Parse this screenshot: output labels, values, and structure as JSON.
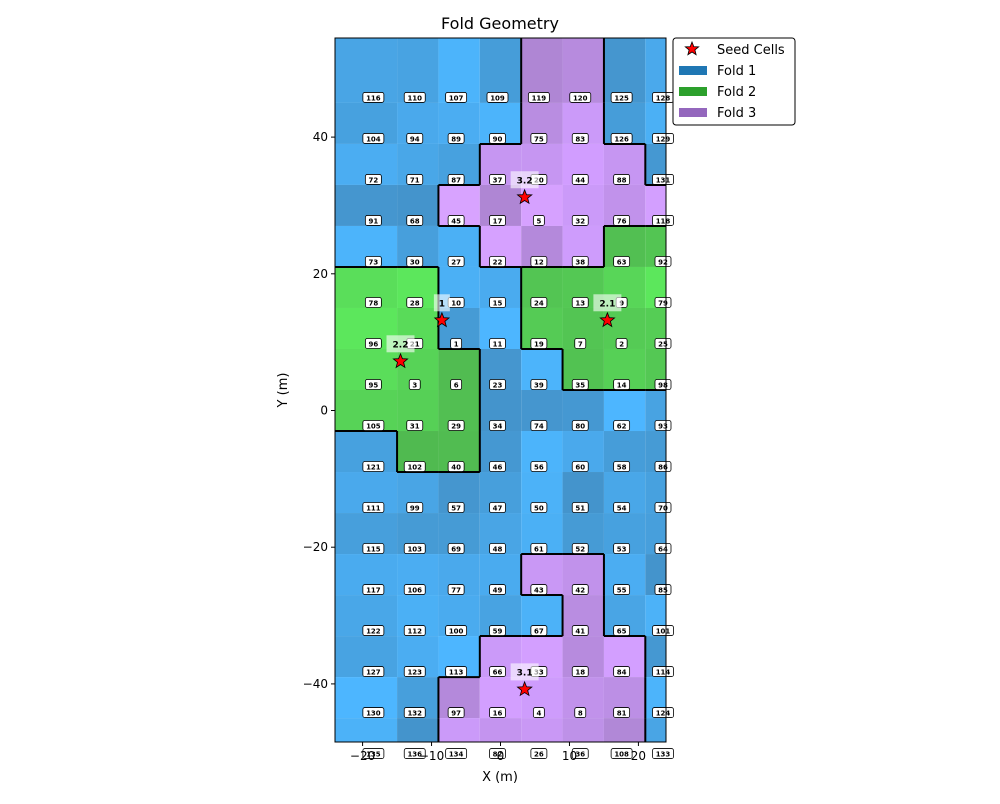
{
  "chart_data": {
    "type": "heatmap",
    "title": "Fold Geometry",
    "xlabel": "X (m)",
    "ylabel": "Y (m)",
    "xlim": [
      -24,
      24
    ],
    "ylim": [
      -48.5,
      54.5
    ],
    "xticks": [
      -20,
      -10,
      0,
      10,
      20
    ],
    "yticks": [
      -40,
      -20,
      0,
      20,
      40
    ],
    "xtick_labels": [
      "−20",
      "−10",
      "0",
      "10",
      "20"
    ],
    "ytick_labels": [
      "−40",
      "−20",
      "0",
      "20",
      "40"
    ],
    "x_columns": [
      -18,
      -12,
      -6,
      0,
      6,
      12,
      18,
      24
    ],
    "y_rows": [
      48,
      42,
      36,
      30,
      24,
      18,
      12,
      6,
      0,
      -6,
      -12,
      -18,
      -24,
      -30,
      -36,
      -42,
      -48
    ],
    "cell_ids": [
      [
        116,
        110,
        107,
        109,
        119,
        120,
        125,
        128
      ],
      [
        104,
        94,
        89,
        90,
        75,
        83,
        126,
        129
      ],
      [
        72,
        71,
        87,
        37,
        20,
        44,
        88,
        131
      ],
      [
        91,
        68,
        45,
        17,
        5,
        32,
        76,
        118
      ],
      [
        73,
        30,
        27,
        22,
        12,
        38,
        63,
        92
      ],
      [
        78,
        28,
        10,
        15,
        24,
        13,
        9,
        79
      ],
      [
        96,
        21,
        1,
        11,
        19,
        7,
        2,
        25
      ],
      [
        95,
        3,
        6,
        23,
        39,
        35,
        14,
        98
      ],
      [
        105,
        31,
        29,
        34,
        74,
        80,
        62,
        93
      ],
      [
        121,
        102,
        40,
        46,
        56,
        60,
        58,
        86
      ],
      [
        111,
        99,
        57,
        47,
        50,
        51,
        54,
        70
      ],
      [
        115,
        103,
        69,
        48,
        61,
        52,
        53,
        64
      ],
      [
        117,
        106,
        77,
        49,
        43,
        42,
        55,
        85
      ],
      [
        122,
        112,
        100,
        59,
        67,
        41,
        65,
        101
      ],
      [
        127,
        123,
        113,
        66,
        33,
        18,
        84,
        114
      ],
      [
        130,
        132,
        97,
        16,
        4,
        8,
        81,
        124
      ],
      [
        135,
        136,
        134,
        82,
        26,
        36,
        108,
        133
      ]
    ],
    "fold_map": [
      [
        1,
        1,
        1,
        1,
        3,
        3,
        1,
        1
      ],
      [
        1,
        1,
        1,
        1,
        3,
        3,
        1,
        1
      ],
      [
        1,
        1,
        1,
        3,
        3,
        3,
        3,
        1
      ],
      [
        1,
        1,
        3,
        3,
        3,
        3,
        3,
        3
      ],
      [
        1,
        1,
        1,
        3,
        3,
        3,
        2,
        2
      ],
      [
        2,
        2,
        1,
        1,
        2,
        2,
        2,
        2
      ],
      [
        2,
        2,
        1,
        1,
        2,
        2,
        2,
        2
      ],
      [
        2,
        2,
        2,
        1,
        1,
        2,
        2,
        2
      ],
      [
        2,
        2,
        2,
        1,
        1,
        1,
        1,
        1
      ],
      [
        1,
        2,
        2,
        1,
        1,
        1,
        1,
        1
      ],
      [
        1,
        1,
        1,
        1,
        1,
        1,
        1,
        1
      ],
      [
        1,
        1,
        1,
        1,
        1,
        1,
        1,
        1
      ],
      [
        1,
        1,
        1,
        1,
        3,
        3,
        1,
        1
      ],
      [
        1,
        1,
        1,
        1,
        1,
        3,
        1,
        1
      ],
      [
        1,
        1,
        1,
        3,
        3,
        3,
        3,
        1
      ],
      [
        1,
        1,
        3,
        3,
        3,
        3,
        3,
        1
      ],
      [
        1,
        1,
        3,
        3,
        3,
        3,
        3,
        1
      ]
    ],
    "seeds": [
      {
        "label": "1",
        "x": -8.5,
        "y": 13.2
      },
      {
        "label": "2.1",
        "x": 15.5,
        "y": 13.2
      },
      {
        "label": "2.2",
        "x": -14.5,
        "y": 7.2
      },
      {
        "label": "3.1",
        "x": 3.5,
        "y": -40.8
      },
      {
        "label": "3.2",
        "x": 3.5,
        "y": 31.2
      }
    ],
    "legend": {
      "placement": "outside-top-right",
      "entries": [
        {
          "label": "Seed Cells",
          "kind": "star",
          "color": "#ff0000"
        },
        {
          "label": "Fold 1",
          "kind": "patch",
          "color": "#1f77b4"
        },
        {
          "label": "Fold 2",
          "kind": "patch",
          "color": "#2ca02c"
        },
        {
          "label": "Fold 3",
          "kind": "patch",
          "color": "#9467bd"
        }
      ]
    },
    "fold_colors": {
      "1": "#1f77b4",
      "2": "#2ca02c",
      "3": "#9467bd"
    }
  }
}
